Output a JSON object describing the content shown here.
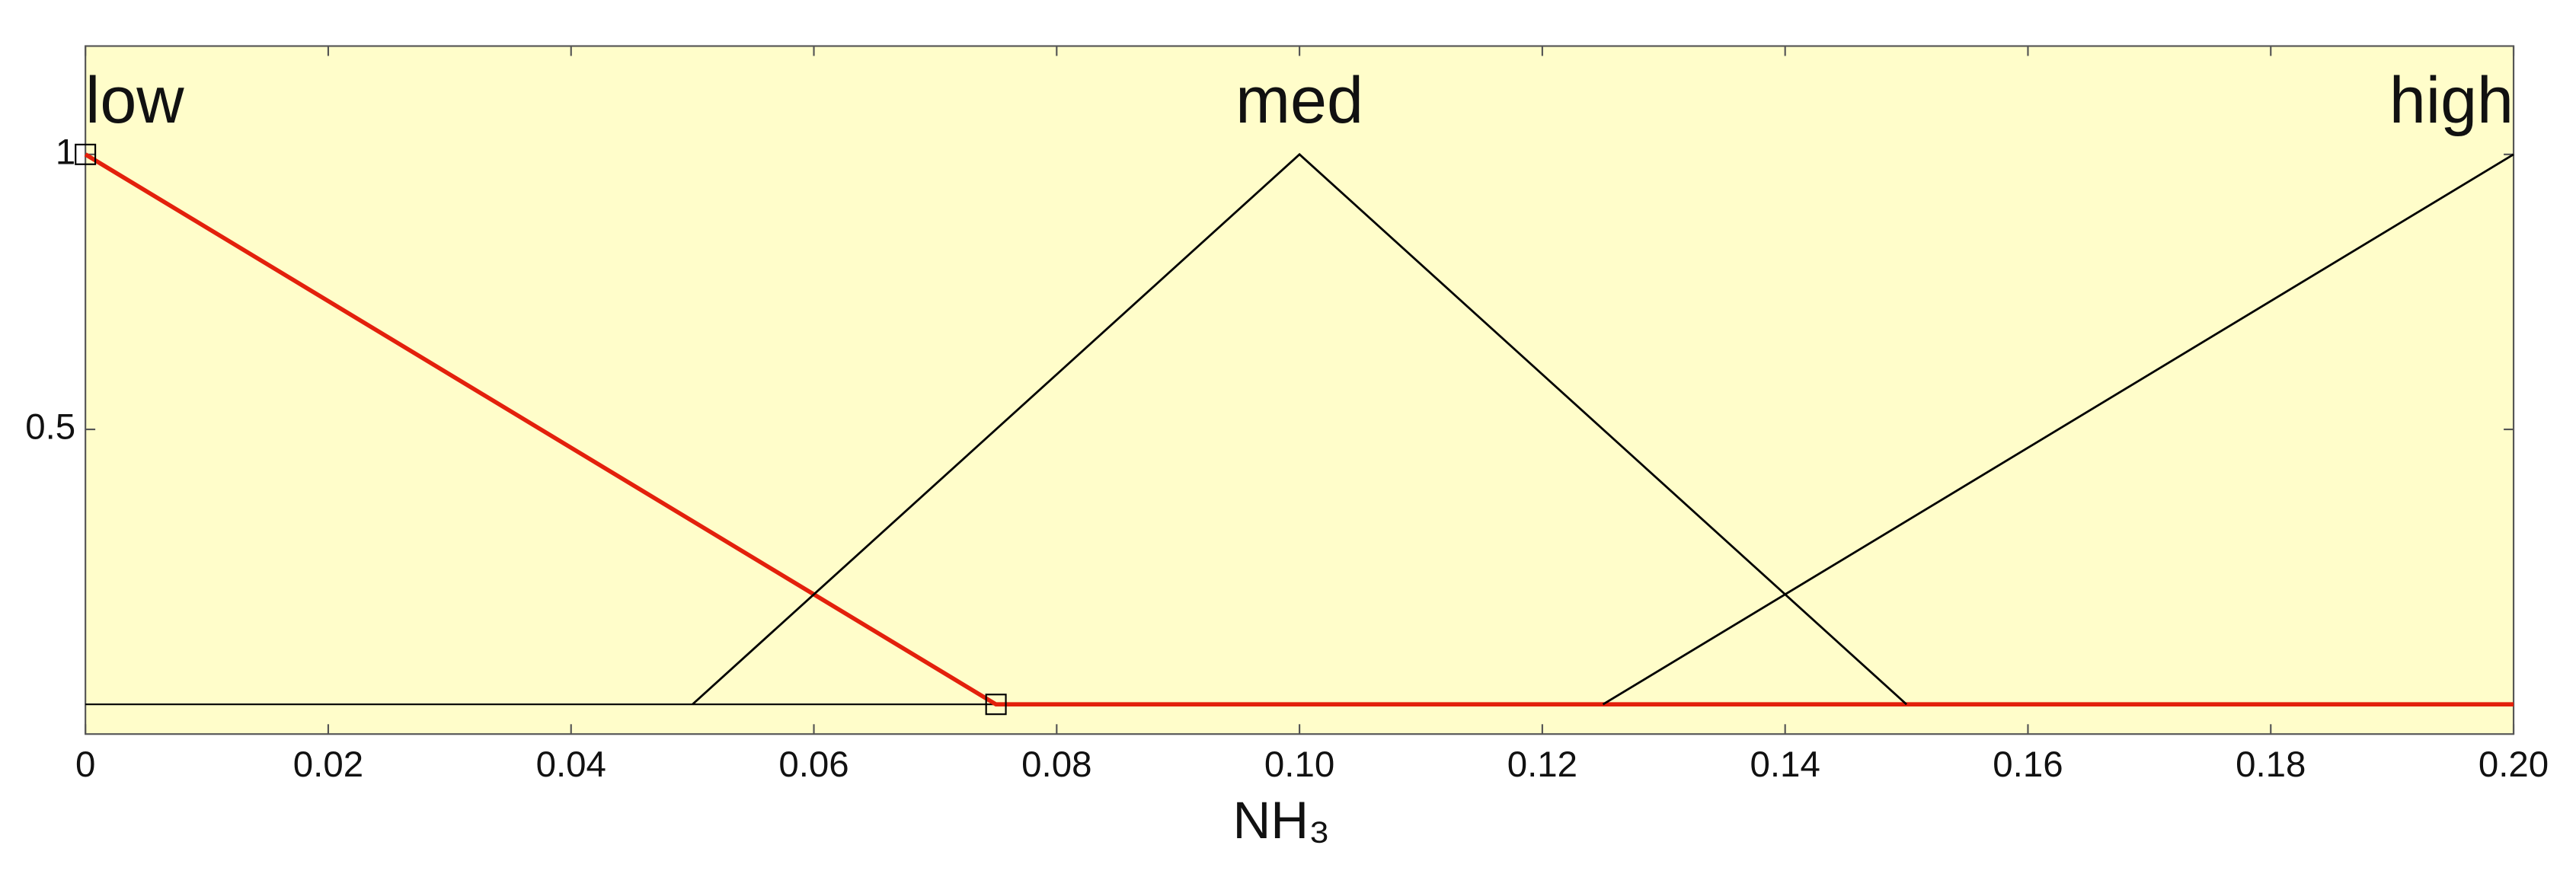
{
  "chart_data": {
    "type": "line",
    "x_label": "NH₃",
    "xlim": [
      0,
      0.2
    ],
    "ylim": [
      -0.054,
      1.197
    ],
    "xticks": [
      0,
      0.02,
      0.04,
      0.06,
      0.08,
      {
        "value": 0.1,
        "label": "0.10"
      },
      0.12,
      0.14,
      0.16,
      0.18,
      {
        "value": 0.2,
        "label": "0.20"
      }
    ],
    "yticks": [
      0.5,
      1
    ],
    "background": "#fffdca",
    "series": [
      {
        "name": "low",
        "color": "#e3200c",
        "x": [
          0,
          0.075,
          0.2
        ],
        "values": [
          1,
          0,
          0
        ]
      },
      {
        "name": "med",
        "color": "#000000",
        "x": [
          0.05,
          0.1,
          0.15
        ],
        "values": [
          0,
          1,
          0
        ]
      },
      {
        "name": "high",
        "color": "#000000",
        "x": [
          0.125,
          0.2
        ],
        "values": [
          0,
          1
        ]
      }
    ]
  }
}
